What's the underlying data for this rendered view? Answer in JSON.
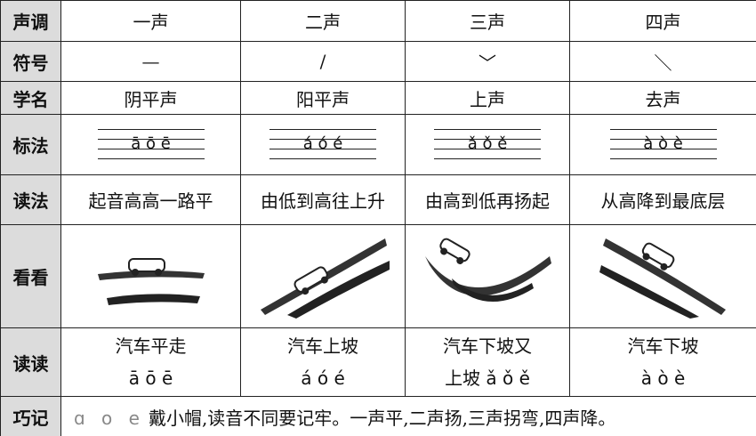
{
  "table": {
    "header": {
      "label": "声调",
      "cells": [
        "一声",
        "二声",
        "三声",
        "四声"
      ]
    },
    "symbol": {
      "label": "符号",
      "cells": [
        "—",
        "/",
        "﹀",
        "＼"
      ]
    },
    "name": {
      "label": "学名",
      "cells": [
        "阴平声",
        "阳平声",
        "上声",
        "去声"
      ]
    },
    "marking": {
      "label": "标法",
      "cells": [
        "ā ō ē",
        "á ó é",
        "ǎ ǒ ě",
        "à ò è"
      ]
    },
    "reading": {
      "label": "读法",
      "cells": [
        "起音高高一路平",
        "由低到高往上升",
        "由高到低再扬起",
        "从高降到最底层"
      ]
    },
    "look": {
      "label": "看看"
    },
    "practice": {
      "label": "读读",
      "cells": [
        [
          "汽车平走",
          "ā ō ē"
        ],
        [
          "汽车上坡",
          "á ó é"
        ],
        [
          "汽车下坡又",
          "上坡 ǎ ǒ ě"
        ],
        [
          "汽车下坡",
          "à ò è"
        ]
      ]
    },
    "memo": {
      "label": "巧记",
      "letters": "ɑ o e",
      "text": "戴小帽,读音不同要记牢。一声平,二声扬,三声拐弯,四声降。"
    }
  }
}
